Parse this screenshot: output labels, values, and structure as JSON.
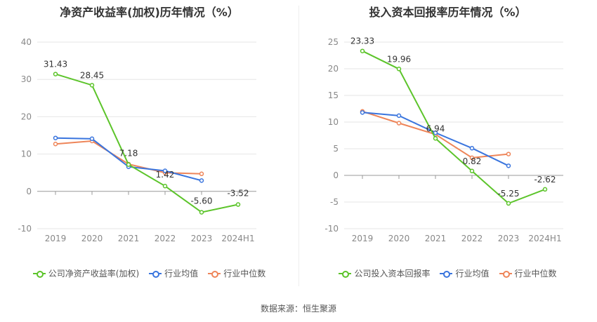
{
  "chart_data": [
    {
      "type": "line",
      "title": "净资产收益率(加权)历年情况（%）",
      "categories": [
        "2019",
        "2020",
        "2021",
        "2022",
        "2023",
        "2024H1"
      ],
      "ylim": [
        -10,
        40
      ],
      "yticks": [
        -10,
        0,
        10,
        20,
        30,
        40
      ],
      "grid": true,
      "legend_position": "bottom",
      "series": [
        {
          "name": "公司净资产收益率(加权)",
          "color": "#5cc42a",
          "values": [
            31.43,
            28.45,
            7.18,
            1.42,
            -5.6,
            -3.52
          ],
          "labels": [
            "31.43",
            "28.45",
            "7.18",
            "1.42",
            "-5.60",
            "-3.52"
          ]
        },
        {
          "name": "行业均值",
          "color": "#3a75de",
          "values": [
            14.3,
            14.1,
            6.6,
            5.5,
            2.9,
            null
          ],
          "labels": []
        },
        {
          "name": "行业中位数",
          "color": "#ee8559",
          "values": [
            12.7,
            13.5,
            7.3,
            5.0,
            4.7,
            null
          ],
          "labels": []
        }
      ]
    },
    {
      "type": "line",
      "title": "投入资本回报率历年情况（%）",
      "categories": [
        "2019",
        "2020",
        "2021",
        "2022",
        "2023",
        "2024H1"
      ],
      "ylim": [
        -10,
        25
      ],
      "yticks": [
        -10,
        -5,
        0,
        5,
        10,
        15,
        20,
        25
      ],
      "grid": true,
      "legend_position": "bottom",
      "series": [
        {
          "name": "公司投入资本回报率",
          "color": "#5cc42a",
          "values": [
            23.33,
            19.96,
            6.94,
            0.82,
            -5.25,
            -2.62
          ],
          "labels": [
            "23.33",
            "19.96",
            "6.94",
            "0.82",
            "-5.25",
            "-2.62"
          ]
        },
        {
          "name": "行业均值",
          "color": "#3a75de",
          "values": [
            11.8,
            11.2,
            8.0,
            5.1,
            1.8,
            null
          ],
          "labels": []
        },
        {
          "name": "行业中位数",
          "color": "#ee8559",
          "values": [
            12.0,
            9.8,
            7.7,
            3.3,
            4.0,
            null
          ],
          "labels": []
        }
      ]
    }
  ],
  "source": "数据来源：恒生聚源"
}
